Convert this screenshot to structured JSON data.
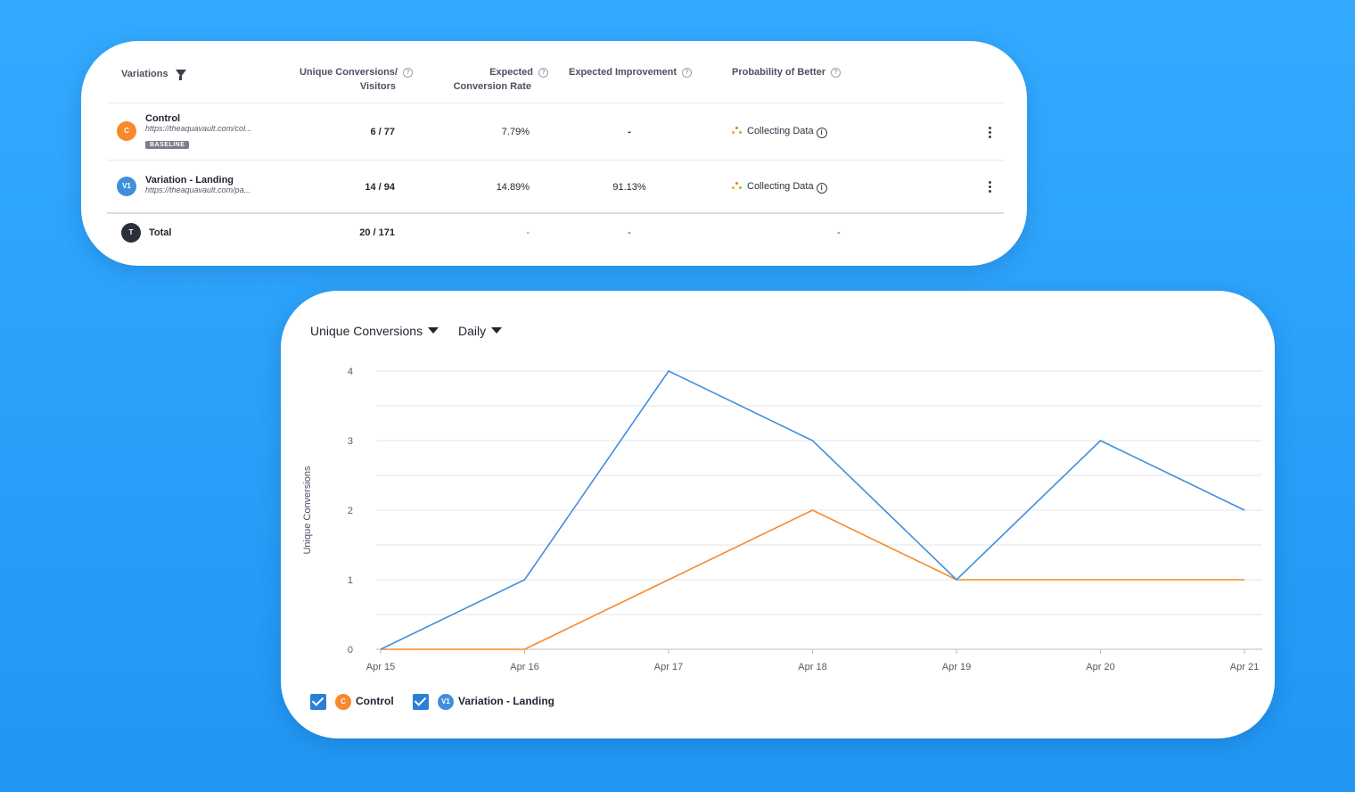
{
  "table": {
    "headers": {
      "variations": "Variations",
      "conversions_line1": "Unique Conversions/",
      "conversions_line2": "Visitors",
      "rate_line1": "Expected",
      "rate_line2": "Conversion Rate",
      "improvement": "Expected Improvement",
      "probability": "Probability of Better"
    },
    "rows": [
      {
        "badge": "C",
        "badge_color": "#f7892b",
        "name": "Control",
        "url": "https://theaquavault.com/col...",
        "tag": "BASELINE",
        "conversions": "6 / 77",
        "rate": "7.79%",
        "improvement": "-",
        "probability": "Collecting Data"
      },
      {
        "badge": "V1",
        "badge_color": "#3f8fdc",
        "name": "Variation - Landing",
        "url": "https://theaquavault.com/pa...",
        "conversions": "14 / 94",
        "rate": "14.89%",
        "improvement": "91.13%",
        "probability": "Collecting Data"
      }
    ],
    "total": {
      "badge": "T",
      "badge_color": "#2a2f38",
      "name": "Total",
      "conversions": "20 / 171",
      "rate": "-",
      "improvement": "-",
      "probability": "-"
    }
  },
  "chart_controls": {
    "metric": "Unique Conversions",
    "period": "Daily"
  },
  "chart_data": {
    "type": "line",
    "x": [
      "Apr 15",
      "Apr 16",
      "Apr 17",
      "Apr 18",
      "Apr 19",
      "Apr 20",
      "Apr 21"
    ],
    "series": [
      {
        "name": "Control",
        "badge": "C",
        "color": "#f7892b",
        "values": [
          0,
          0,
          1,
          2,
          1,
          1,
          1
        ]
      },
      {
        "name": "Variation - Landing",
        "badge": "V1",
        "color": "#3f8fdc",
        "values": [
          0,
          1,
          4,
          3,
          1,
          3,
          2
        ]
      }
    ],
    "ylabel": "Unique Conversions",
    "yticks": [
      "0",
      "1",
      "2",
      "3",
      "4"
    ],
    "ylim": [
      0,
      4
    ],
    "grid": true,
    "legend": "bottom-left"
  }
}
